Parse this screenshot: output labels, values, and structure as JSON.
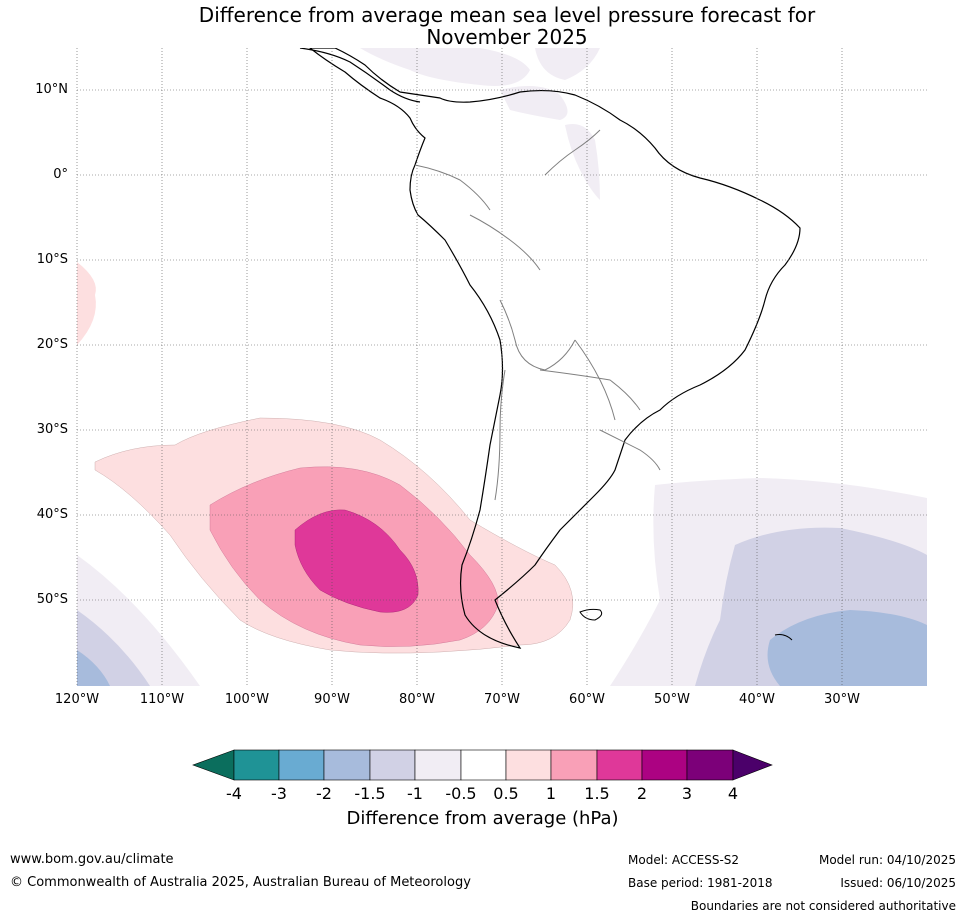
{
  "title": {
    "line1": "Difference from average mean sea level pressure forecast for",
    "line2": "November 2025"
  },
  "map": {
    "lat_labels": [
      "10°N",
      "0°",
      "10°S",
      "20°S",
      "30°S",
      "40°S",
      "50°S"
    ],
    "lon_labels": [
      "120°W",
      "110°W",
      "100°W",
      "90°W",
      "80°W",
      "70°W",
      "60°W",
      "50°W",
      "40°W",
      "30°W"
    ]
  },
  "colorbar": {
    "title": "Difference from average (hPa)",
    "tick_labels": [
      "-4",
      "-3",
      "-2",
      "-1.5",
      "-1",
      "-0.5",
      "0.5",
      "1",
      "1.5",
      "2",
      "3",
      "4"
    ],
    "colors": {
      "lt_minus4": "#0b6e5d",
      "minus4_minus3": "#1f9396",
      "minus3_minus2": "#69abd2",
      "minus2_minus1_5": "#a7bbdc",
      "minus1_5_minus1": "#d1d1e5",
      "minus1_minus0_5": "#f1edf4",
      "minus0_5_0_5": "#ffffff",
      "p0_5_1": "#fddfe0",
      "p1_1_5": "#f9a0b7",
      "p1_5_2": "#df3899",
      "p2_3": "#ac0282",
      "p3_4": "#7c0079",
      "gt_4": "#4b006a"
    }
  },
  "footer": {
    "website": "www.bom.gov.au/climate",
    "copyright": "© Commonwealth of Australia 2025, Australian Bureau of Meteorology",
    "model": "Model: ACCESS-S2",
    "base_period": "Base period: 1981-2018",
    "model_run": "Model run: 04/10/2025",
    "issued": "Issued: 06/10/2025",
    "disclaimer": "Boundaries are not considered authoritative"
  }
}
